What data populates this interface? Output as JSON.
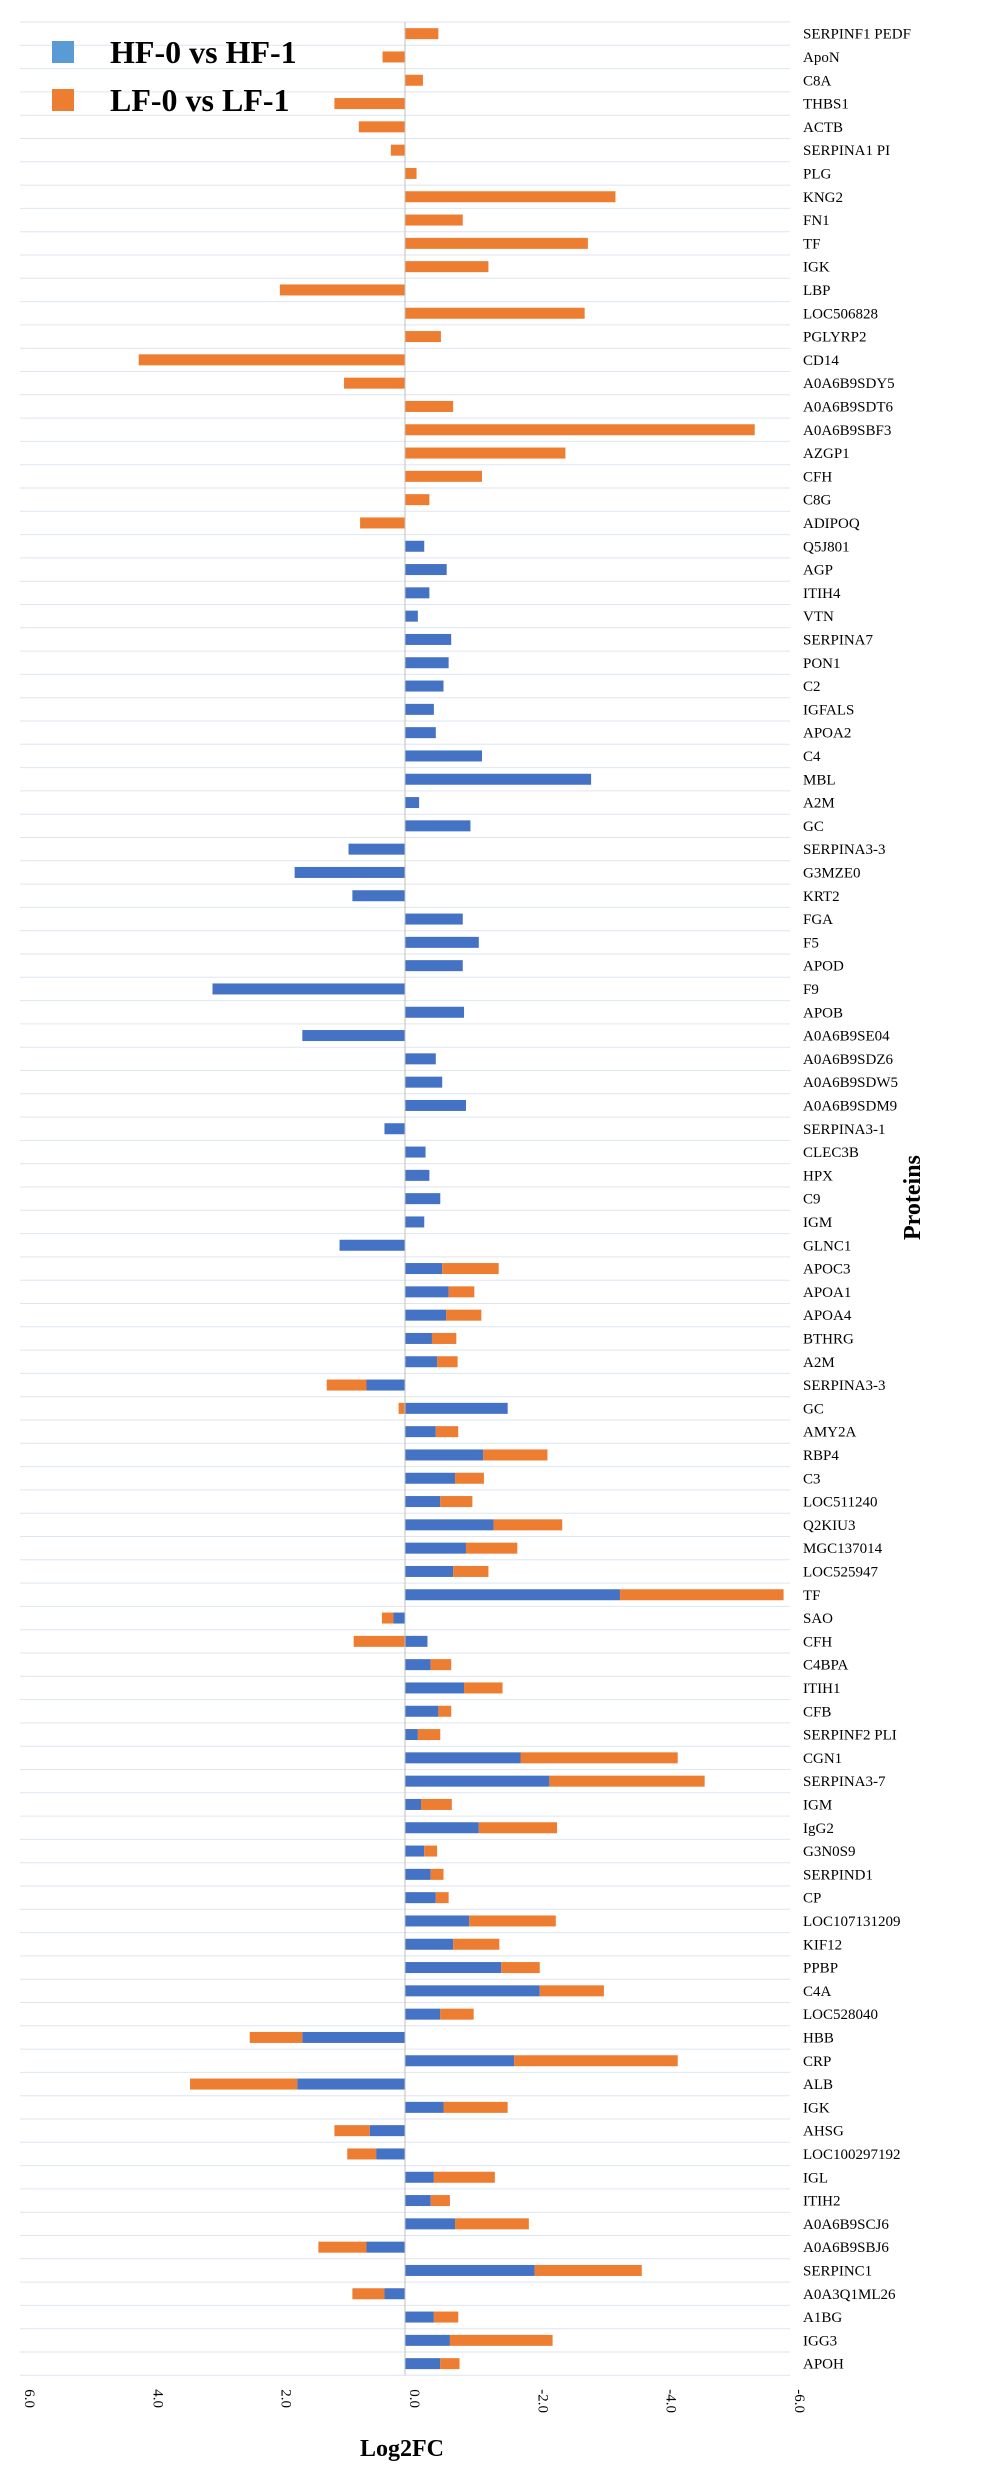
{
  "legend": {
    "hf": {
      "label": "HF-0 vs HF-1",
      "color": "#4472C4",
      "swatch_color": "#5B9BD5"
    },
    "lf": {
      "label": "LF-0 vs LF-1",
      "color": "#ED7D31"
    }
  },
  "chart_data": {
    "type": "bar",
    "orientation": "horizontal",
    "stacked": true,
    "x_reversed": true,
    "xlabel": "Log2FC",
    "ylabel": "Proteins",
    "xlim": [
      6.0,
      -6.0
    ],
    "x_ticks": [
      "6.0",
      "4.0",
      "2.0",
      "0.0",
      "-2.0",
      "-4.0",
      "-6.0"
    ],
    "categories": [
      "SERPINF1 PEDF",
      "ApoN",
      "C8A",
      "THBS1",
      "ACTB",
      "SERPINA1 PI",
      "PLG",
      "KNG2",
      "FN1",
      "TF",
      "IGK",
      "LBP",
      "LOC506828",
      "PGLYRP2",
      "CD14",
      "A0A6B9SDY5",
      "A0A6B9SDT6",
      "A0A6B9SBF3",
      "AZGP1",
      "CFH",
      "C8G",
      "ADIPOQ",
      "Q5J801",
      "AGP",
      "ITIH4",
      "VTN",
      "SERPINA7",
      "PON1",
      "C2",
      "IGFALS",
      "APOA2",
      "C4",
      "MBL",
      "A2M",
      "GC",
      "SERPINA3-3",
      "G3MZE0",
      "KRT2",
      "FGA",
      "F5",
      "APOD",
      "F9",
      "APOB",
      "A0A6B9SE04",
      "A0A6B9SDZ6",
      "A0A6B9SDW5",
      "A0A6B9SDM9",
      "SERPINA3-1",
      "CLEC3B",
      "HPX",
      "C9",
      "IGM",
      "GLNC1",
      "APOC3",
      "APOA1",
      "APOA4",
      "BTHRG",
      "A2M",
      "SERPINA3-3",
      "GC",
      "AMY2A",
      "RBP4",
      "C3",
      "LOC511240",
      "Q2KIU3",
      "MGC137014",
      "LOC525947",
      "TF",
      "SAO",
      "CFH",
      "C4BPA",
      "ITIH1",
      "CFB",
      "SERPINF2 PLI",
      "CGN1",
      "SERPINA3-7",
      "IGM",
      "IgG2",
      "G3N0S9",
      "SERPIND1",
      "CP",
      "LOC107131209",
      "KIF12",
      "PPBP",
      "C4A",
      "LOC528040",
      "HBB",
      "CRP",
      "ALB",
      "IGK",
      "AHSG",
      "LOC100297192",
      "IGL",
      "ITIH2",
      "A0A6B9SCJ6",
      "A0A6B9SBJ6",
      "SERPINC1",
      "A0A3Q1ML26",
      "A1BG",
      "IGG3",
      "APOH"
    ],
    "series": [
      {
        "name": "HF-0 vs HF-1",
        "values": [
          0,
          0,
          0,
          0,
          0,
          0,
          0,
          0,
          0,
          0,
          0,
          0,
          0,
          0,
          0,
          0,
          0,
          0,
          0,
          0,
          0,
          0,
          -0.3,
          -0.65,
          -0.38,
          -0.2,
          -0.72,
          -0.68,
          -0.6,
          -0.45,
          -0.48,
          -1.2,
          -2.9,
          -0.22,
          -1.02,
          0.88,
          1.72,
          0.82,
          -0.9,
          -1.15,
          -0.9,
          3.0,
          -0.92,
          1.6,
          -0.48,
          -0.58,
          -0.95,
          0.32,
          -0.32,
          -0.38,
          -0.55,
          -0.3,
          1.02,
          -0.58,
          -0.68,
          -0.64,
          -0.42,
          -0.5,
          0.6,
          -1.6,
          -0.48,
          -1.22,
          -0.78,
          -0.55,
          -1.38,
          -0.95,
          -0.75,
          -3.35,
          0.18,
          -0.35,
          -0.4,
          -0.92,
          -0.52,
          -0.2,
          -1.8,
          -2.25,
          -0.25,
          -1.15,
          -0.3,
          -0.4,
          -0.48,
          -1.0,
          -0.75,
          -1.5,
          -2.1,
          -0.55,
          1.6,
          -1.7,
          1.68,
          -0.6,
          0.55,
          0.45,
          -0.45,
          -0.4,
          -0.78,
          0.6,
          -2.02,
          0.32,
          -0.45,
          -0.7,
          -0.55
        ]
      },
      {
        "name": "LF-0 vs LF-1",
        "values": [
          -0.52,
          0.35,
          -0.28,
          1.1,
          0.72,
          0.22,
          -0.18,
          -3.28,
          -0.9,
          -2.85,
          -1.3,
          1.95,
          -2.8,
          -0.56,
          4.15,
          0.95,
          -0.75,
          -5.45,
          -2.5,
          -1.2,
          -0.38,
          0.7,
          0,
          0,
          0,
          0,
          0,
          0,
          0,
          0,
          0,
          0,
          0,
          0,
          0,
          0,
          0,
          0,
          0,
          0,
          0,
          0,
          0,
          0,
          0,
          0,
          0,
          0,
          0,
          0,
          0,
          0,
          0,
          -0.88,
          -0.4,
          -0.55,
          -0.38,
          -0.32,
          0.62,
          0.1,
          -0.35,
          -1.0,
          -0.45,
          -0.5,
          -1.07,
          -0.8,
          -0.55,
          -2.55,
          0.18,
          0.8,
          -0.32,
          -0.6,
          -0.2,
          -0.35,
          -2.45,
          -2.42,
          -0.48,
          -1.22,
          -0.2,
          -0.2,
          -0.2,
          -1.35,
          -0.72,
          -0.6,
          -1.0,
          -0.52,
          0.82,
          -2.55,
          1.67,
          -1.0,
          0.55,
          0.45,
          -0.95,
          -0.3,
          -1.15,
          0.75,
          -1.67,
          0.5,
          -0.38,
          -1.6,
          -0.3
        ]
      }
    ]
  },
  "axis_labels": {
    "x": "Log2FC",
    "y": "Proteins"
  }
}
